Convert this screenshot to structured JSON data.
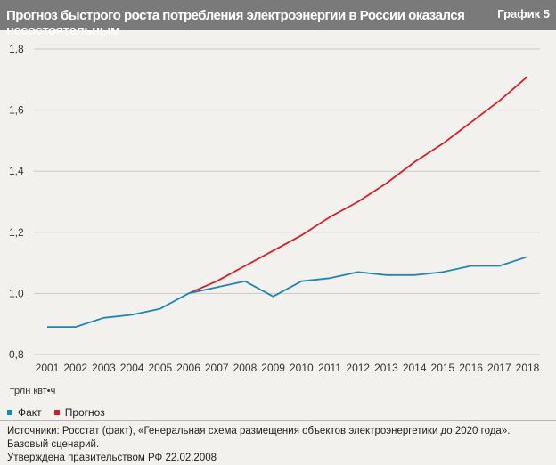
{
  "header": {
    "title": "Прогноз быстрого роста потребления электроэнергии в России оказался несостоятельным",
    "badge": "График 5"
  },
  "unit_label": "трлн квт•ч",
  "legend": {
    "fact": "Факт",
    "forecast": "Прогноз"
  },
  "source": {
    "line1": "Источники: Росстат (факт), «Генеральная схема размещения объектов электроэнергетики до 2020 года». Базовый сценарий.",
    "line2": "Утверждена правительством РФ 22.02.2008"
  },
  "colors": {
    "fact": "#1f86b3",
    "forecast": "#d81f26",
    "grid": "#c9c9c9"
  },
  "chart_data": {
    "type": "line",
    "title": "Прогноз быстрого роста потребления электроэнергии в России оказался несостоятельным",
    "xlabel": "",
    "ylabel": "трлн квт•ч",
    "ylim": [
      0.8,
      1.8
    ],
    "yticks": [
      "0,8",
      "1,0",
      "1,2",
      "1,4",
      "1,6",
      "1,8"
    ],
    "categories": [
      "2001",
      "2002",
      "2003",
      "2004",
      "2005",
      "2006",
      "2007",
      "2008",
      "2009",
      "2010",
      "2011",
      "2012",
      "2013",
      "2014",
      "2015",
      "2016",
      "2017",
      "2018"
    ],
    "grid": "horizontal",
    "legend_position": "bottom-left",
    "series": [
      {
        "name": "Факт",
        "x": [
          "2001",
          "2002",
          "2003",
          "2004",
          "2005",
          "2006",
          "2007",
          "2008",
          "2009",
          "2010",
          "2011",
          "2012",
          "2013",
          "2014",
          "2015",
          "2016",
          "2017",
          "2018"
        ],
        "values": [
          0.89,
          0.89,
          0.92,
          0.93,
          0.95,
          1.0,
          1.02,
          1.04,
          0.99,
          1.04,
          1.05,
          1.07,
          1.06,
          1.06,
          1.07,
          1.09,
          1.09,
          1.12
        ]
      },
      {
        "name": "Прогноз",
        "x": [
          "2006",
          "2007",
          "2008",
          "2009",
          "2010",
          "2011",
          "2012",
          "2013",
          "2014",
          "2015",
          "2016",
          "2017",
          "2018"
        ],
        "values": [
          1.0,
          1.04,
          1.09,
          1.14,
          1.19,
          1.25,
          1.3,
          1.36,
          1.43,
          1.49,
          1.56,
          1.63,
          1.71
        ]
      }
    ]
  }
}
